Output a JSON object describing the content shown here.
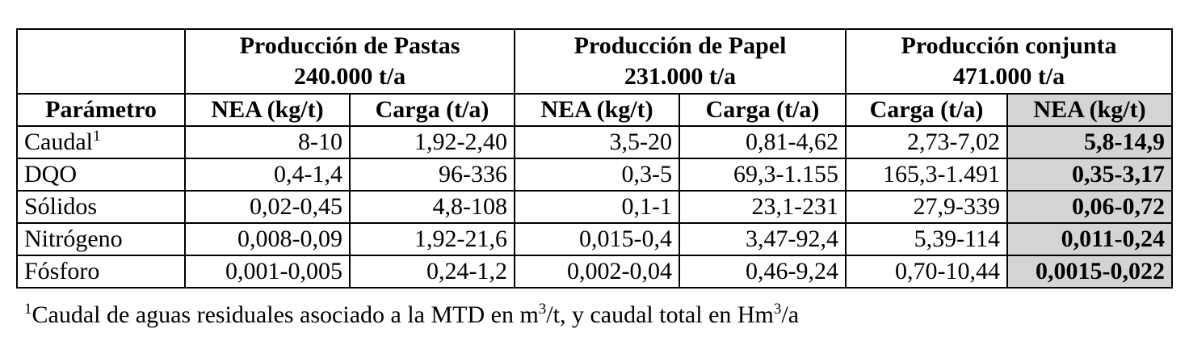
{
  "groups": [
    {
      "title": "Producción de Pastas",
      "subtitle": "240.000 t/a"
    },
    {
      "title": "Producción de Papel",
      "subtitle": "231.000 t/a"
    },
    {
      "title": "Producción conjunta",
      "subtitle": "471.000 t/a"
    }
  ],
  "columns": [
    "Parámetro",
    "NEA (kg/t)",
    "Carga (t/a)",
    "NEA (kg/t)",
    "Carga (t/a)",
    "Carga (t/a)",
    "NEA (kg/t)"
  ],
  "rows": [
    {
      "param": "Caudal",
      "sup": "1",
      "values": [
        "8-10",
        "1,92-2,40",
        "3,5-20",
        "0,81-4,62",
        "2,73-7,02",
        "5,8-14,9"
      ]
    },
    {
      "param": "DQO",
      "values": [
        "0,4-1,4",
        "96-336",
        "0,3-5",
        "69,3-1.155",
        "165,3-1.491",
        "0,35-3,17"
      ]
    },
    {
      "param": "Sólidos",
      "values": [
        "0,02-0,45",
        "4,8-108",
        "0,1-1",
        "23,1-231",
        "27,9-339",
        "0,06-0,72"
      ]
    },
    {
      "param": "Nitrógeno",
      "values": [
        "0,008-0,09",
        "1,92-21,6",
        "0,015-0,4",
        "3,47-92,4",
        "5,39-114",
        "0,011-0,24"
      ]
    },
    {
      "param": "Fósforo",
      "values": [
        "0,001-0,005",
        "0,24-1,2",
        "0,002-0,04",
        "0,46-9,24",
        "0,70-10,44",
        "0,0015-0,022"
      ]
    }
  ],
  "footnote": {
    "marker": "1",
    "part1": "Caudal de aguas residuales asociado a la MTD en m",
    "sup1": "3",
    "part2": "/t, y caudal total en Hm",
    "sup2": "3",
    "part3": "/a"
  },
  "colors": {
    "highlight": "#d4d4d4"
  }
}
